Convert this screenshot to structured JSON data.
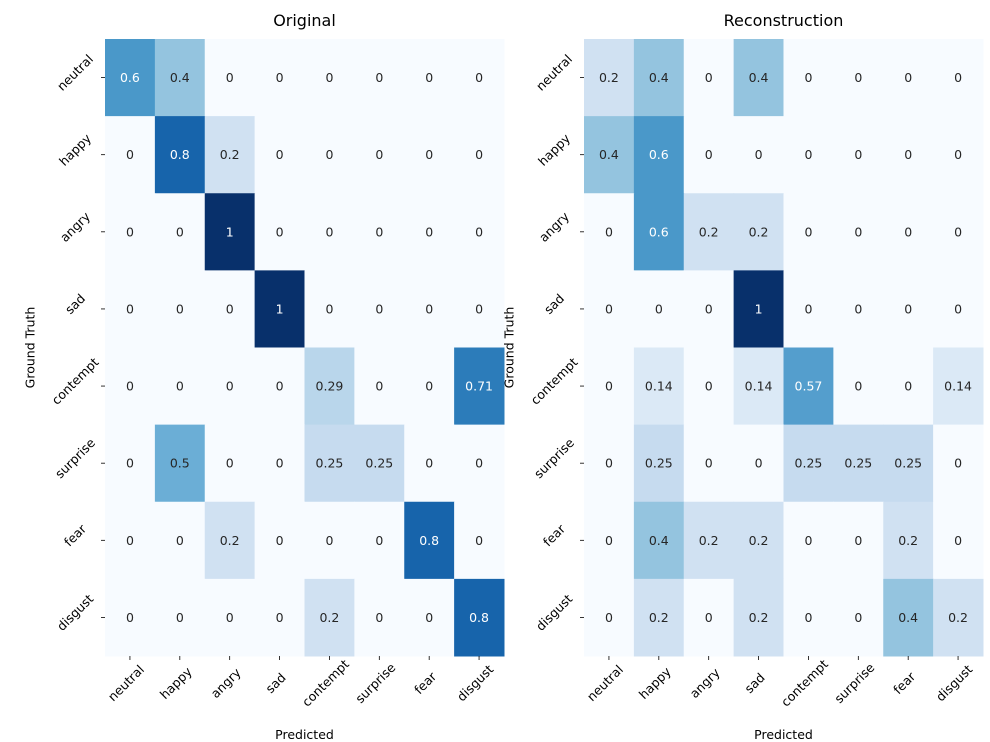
{
  "chart_data": [
    {
      "type": "heatmap",
      "title": "Original",
      "xlabel": "Predicted",
      "ylabel": "Ground Truth",
      "x_categories": [
        "neutral",
        "happy",
        "angry",
        "sad",
        "contempt",
        "surprise",
        "fear",
        "disgust"
      ],
      "y_categories": [
        "neutral",
        "happy",
        "angry",
        "sad",
        "contempt",
        "surprise",
        "fear",
        "disgust"
      ],
      "colormap": "Blues",
      "vmin": 0,
      "vmax": 1,
      "values": [
        [
          "0.6",
          "0.4",
          "0",
          "0",
          "0",
          "0",
          "0",
          "0"
        ],
        [
          "0",
          "0.8",
          "0.2",
          "0",
          "0",
          "0",
          "0",
          "0"
        ],
        [
          "0",
          "0",
          "1",
          "0",
          "0",
          "0",
          "0",
          "0"
        ],
        [
          "0",
          "0",
          "0",
          "1",
          "0",
          "0",
          "0",
          "0"
        ],
        [
          "0",
          "0",
          "0",
          "0",
          "0.29",
          "0",
          "0",
          "0.71"
        ],
        [
          "0",
          "0.5",
          "0",
          "0",
          "0.25",
          "0.25",
          "0",
          "0"
        ],
        [
          "0",
          "0",
          "0.2",
          "0",
          "0",
          "0",
          "0.8",
          "0"
        ],
        [
          "0",
          "0",
          "0",
          "0",
          "0.2",
          "0",
          "0",
          "0.8"
        ]
      ]
    },
    {
      "type": "heatmap",
      "title": "Reconstruction",
      "xlabel": "Predicted",
      "ylabel": "Ground Truth",
      "x_categories": [
        "neutral",
        "happy",
        "angry",
        "sad",
        "contempt",
        "surprise",
        "fear",
        "disgust"
      ],
      "y_categories": [
        "neutral",
        "happy",
        "angry",
        "sad",
        "contempt",
        "surprise",
        "fear",
        "disgust"
      ],
      "colormap": "Blues",
      "vmin": 0,
      "vmax": 1,
      "values": [
        [
          "0.2",
          "0.4",
          "0",
          "0.4",
          "0",
          "0",
          "0",
          "0"
        ],
        [
          "0.4",
          "0.6",
          "0",
          "0",
          "0",
          "0",
          "0",
          "0"
        ],
        [
          "0",
          "0.6",
          "0.2",
          "0.2",
          "0",
          "0",
          "0",
          "0"
        ],
        [
          "0",
          "0",
          "0",
          "1",
          "0",
          "0",
          "0",
          "0"
        ],
        [
          "0",
          "0.14",
          "0",
          "0.14",
          "0.57",
          "0",
          "0",
          "0.14"
        ],
        [
          "0",
          "0.25",
          "0",
          "0",
          "0.25",
          "0.25",
          "0.25",
          "0"
        ],
        [
          "0",
          "0.4",
          "0.2",
          "0.2",
          "0",
          "0",
          "0.2",
          "0"
        ],
        [
          "0",
          "0.2",
          "0",
          "0.2",
          "0",
          "0",
          "0.4",
          "0.2"
        ]
      ]
    }
  ]
}
